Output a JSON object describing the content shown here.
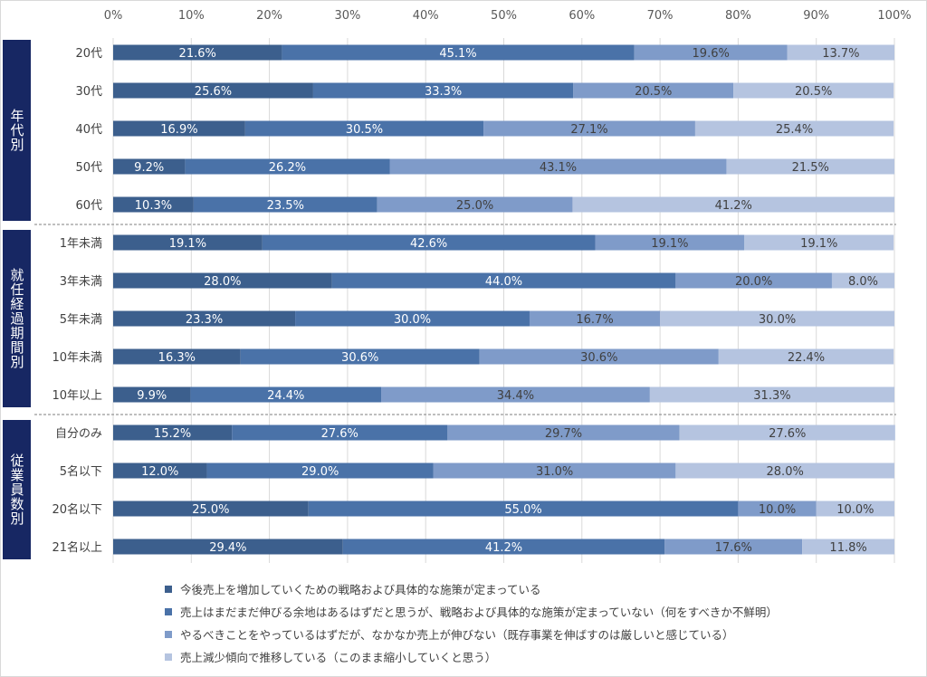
{
  "chart_data": {
    "type": "bar",
    "orientation": "horizontal",
    "stacked": true,
    "percent_stacked": true,
    "xlim": [
      0,
      100
    ],
    "x_ticks": [
      "0%",
      "10%",
      "20%",
      "30%",
      "40%",
      "50%",
      "60%",
      "70%",
      "80%",
      "90%",
      "100%"
    ],
    "grid": true,
    "legend_position": "bottom",
    "groups": [
      {
        "label": "年代別",
        "categories": [
          "20代",
          "30代",
          "40代",
          "50代",
          "60代"
        ]
      },
      {
        "label": "就任経過期間別",
        "categories": [
          "1年未満",
          "3年未満",
          "5年未満",
          "10年未満",
          "10年以上"
        ]
      },
      {
        "label": "従業員数別",
        "categories": [
          "自分のみ",
          "5名以下",
          "20名以下",
          "21名以上"
        ]
      }
    ],
    "categories": [
      "20代",
      "30代",
      "40代",
      "50代",
      "60代",
      "1年未満",
      "3年未満",
      "5年未満",
      "10年未満",
      "10年以上",
      "自分のみ",
      "5名以下",
      "20名以下",
      "21名以上"
    ],
    "series": [
      {
        "name": "今後売上を増加していくための戦略および具体的な施策が定まっている",
        "color": "#3c5f8d",
        "values": [
          21.6,
          25.6,
          16.9,
          9.2,
          10.3,
          19.1,
          28.0,
          23.3,
          16.3,
          9.9,
          15.2,
          12.0,
          25.0,
          29.4
        ]
      },
      {
        "name": "売上はまだまだ伸びる余地はあるはずだと思うが、戦略および具体的な施策が定まっていない（何をすべきか不鮮明）",
        "color": "#4a72a8",
        "values": [
          45.1,
          33.3,
          30.5,
          26.2,
          23.5,
          42.6,
          44.0,
          30.0,
          30.6,
          24.4,
          27.6,
          29.0,
          55.0,
          41.2
        ]
      },
      {
        "name": "やるべきことをやっているはずだが、なかなか売上が伸びない（既存事業を伸ばすのは厳しいと感じている）",
        "color": "#7f9bc9",
        "values": [
          19.6,
          20.5,
          27.1,
          43.1,
          25.0,
          19.1,
          20.0,
          16.7,
          30.6,
          34.4,
          29.7,
          31.0,
          10.0,
          17.6
        ]
      },
      {
        "name": "売上減少傾向で推移している（このまま縮小していくと思う）",
        "color": "#b5c4e0",
        "values": [
          13.7,
          20.5,
          25.4,
          21.5,
          41.2,
          19.1,
          8.0,
          30.0,
          22.4,
          31.3,
          27.6,
          28.0,
          10.0,
          11.8
        ]
      }
    ],
    "data_label_format": "{v}%"
  }
}
